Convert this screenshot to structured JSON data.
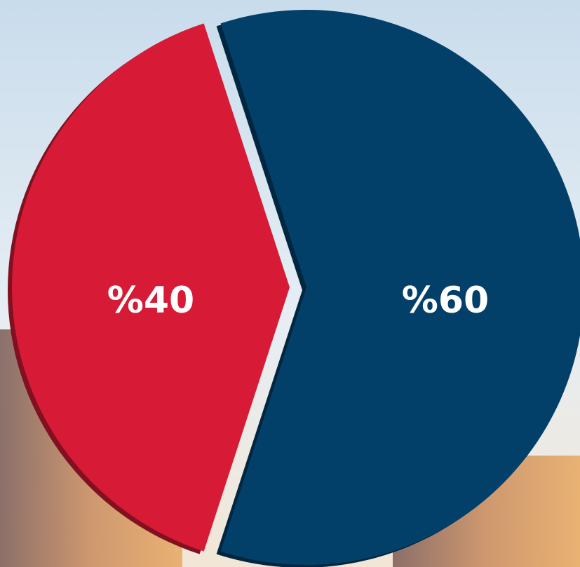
{
  "chart_data": {
    "type": "pie",
    "values": [
      40,
      60
    ],
    "value_labels": [
      "%40",
      "%60"
    ],
    "colors": [
      "#d71a35",
      "#02406a"
    ]
  }
}
